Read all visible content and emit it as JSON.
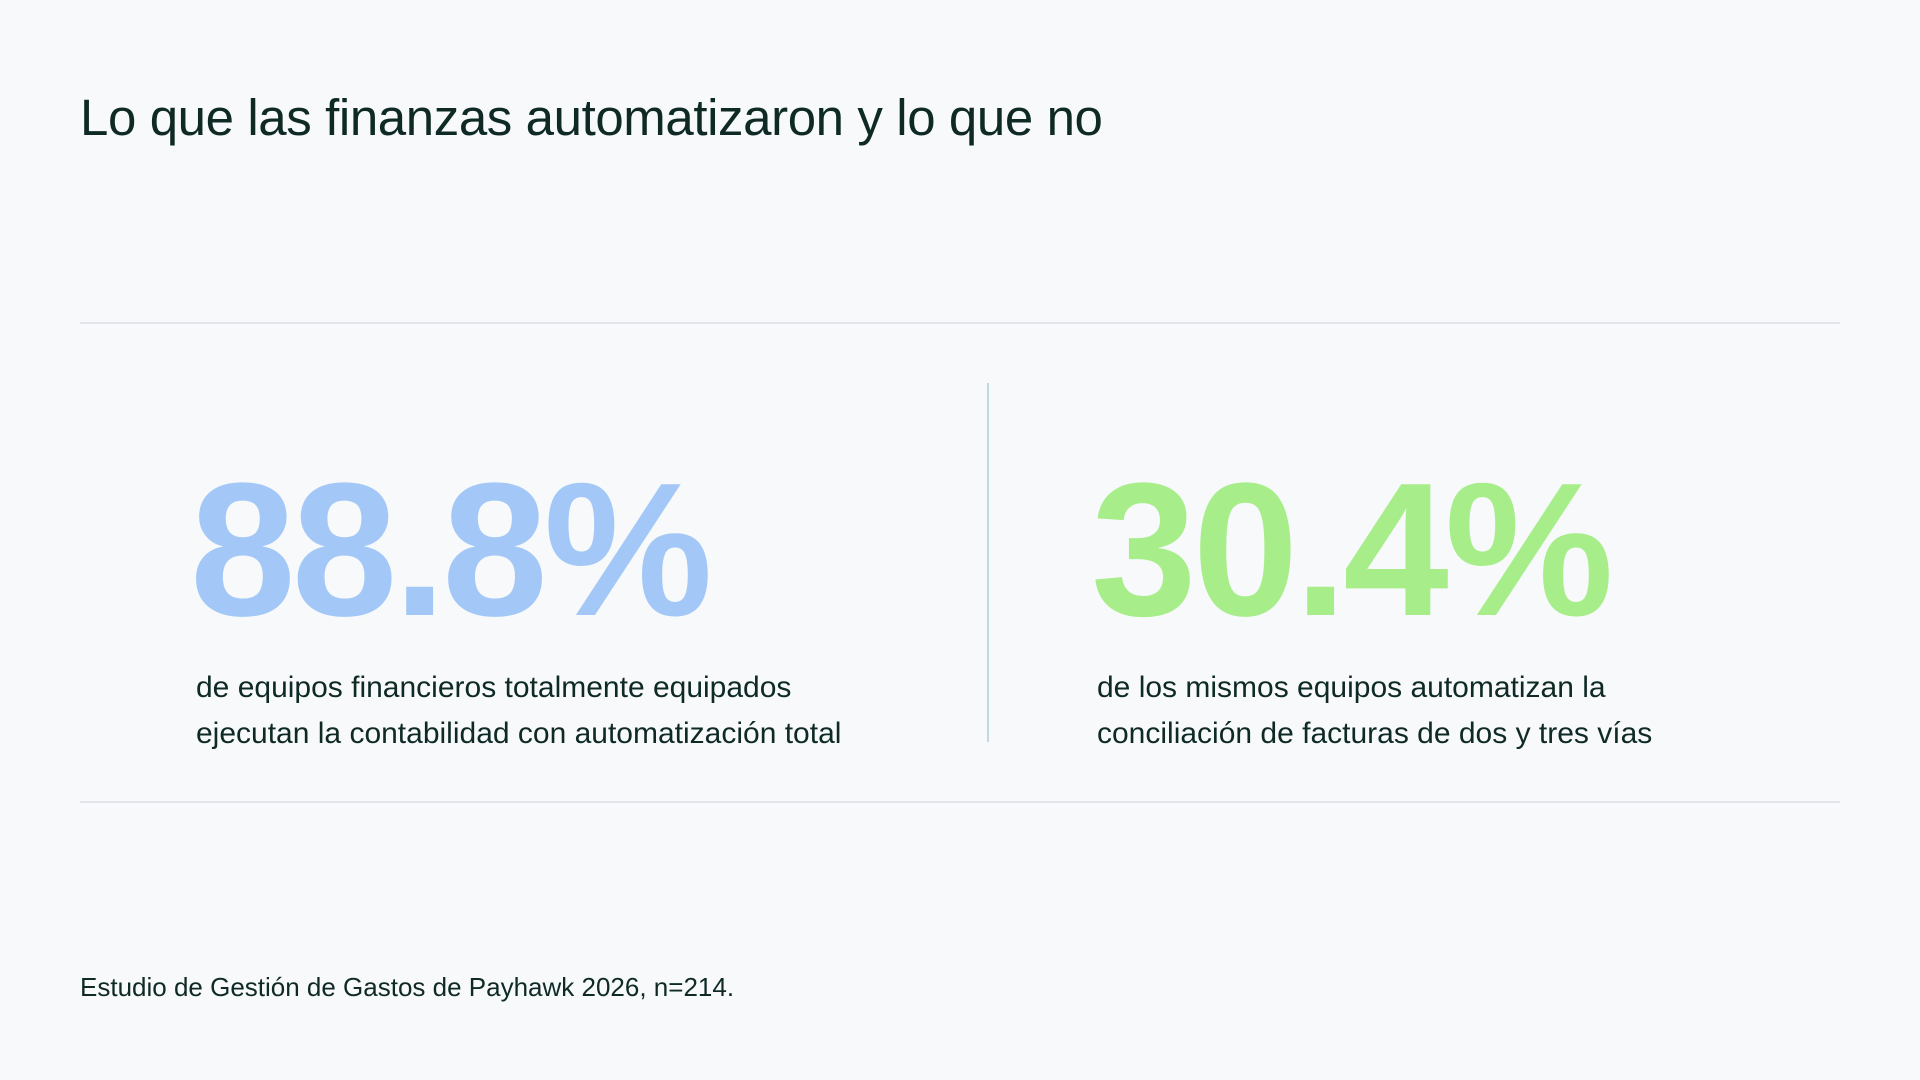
{
  "page": {
    "title": "Lo que las finanzas automatizaron y lo que no",
    "source": "Estudio de Gestión de Gastos de Payhawk 2026, n=214."
  },
  "stats": [
    {
      "value": "88.8%",
      "color": "#a3c8f7",
      "description_lines": [
        "de equipos financieros totalmente equipados",
        "ejecutan la contabilidad con automatización total"
      ]
    },
    {
      "value": "30.4%",
      "color": "#a7ee8a",
      "description_lines": [
        "de los mismos equipos automatizan la",
        "conciliación de facturas de dos y tres vías"
      ]
    }
  ],
  "colors": {
    "background": "#f7f9fb",
    "text": "#0f2a25",
    "rule": "#e2e6ea",
    "divider": "#bfd9df"
  }
}
